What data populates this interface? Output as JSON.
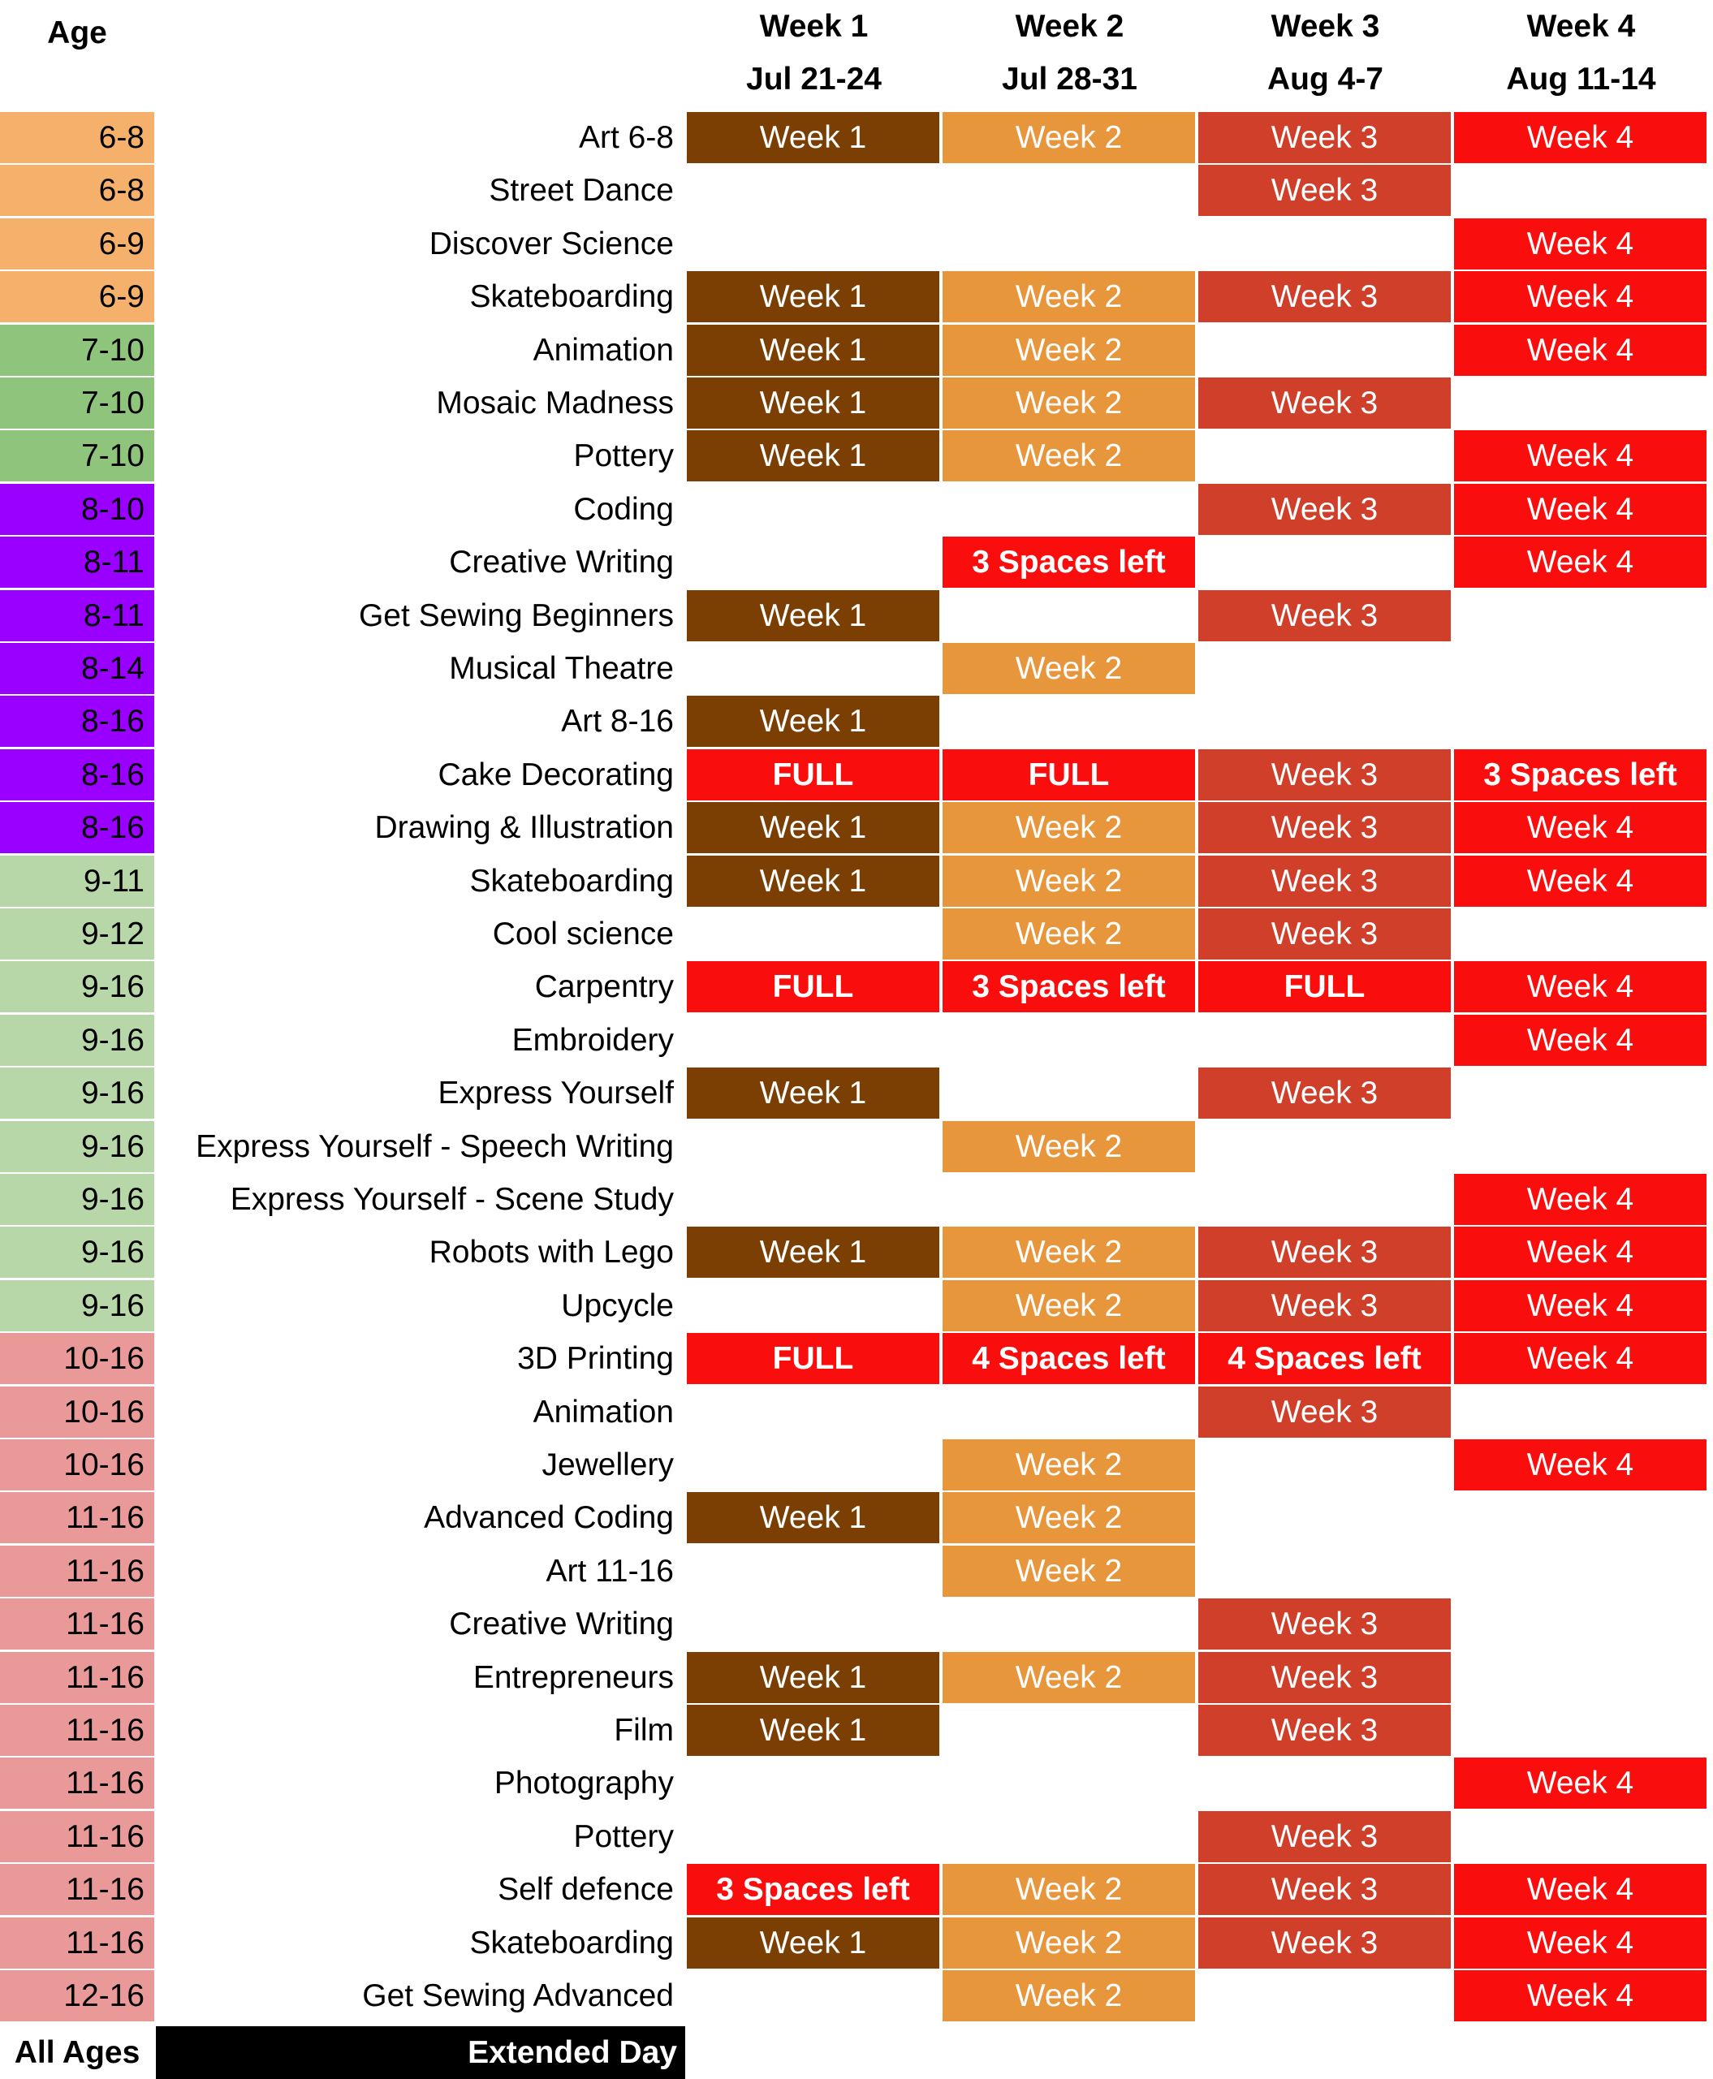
{
  "header": {
    "age_label": "Age",
    "weeks": [
      {
        "label": "Week 1",
        "dates": "Jul 21-24"
      },
      {
        "label": "Week 2",
        "dates": "Jul 28-31"
      },
      {
        "label": "Week 3",
        "dates": "Aug 4-7"
      },
      {
        "label": "Week 4",
        "dates": "Aug 11-14"
      }
    ]
  },
  "colors": {
    "age_groups": {
      "6-8": "#f5b06c",
      "6-9": "#f5b06c",
      "7-10": "#8fc47c",
      "8-10": "#9900ff",
      "8-11": "#9900ff",
      "8-14": "#9900ff",
      "8-16": "#9900ff",
      "9-11": "#b7d7a8",
      "9-12": "#b7d7a8",
      "9-16": "#b7d7a8",
      "10-16": "#ea9999",
      "11-16": "#ea9999",
      "12-16": "#ea9999"
    },
    "week_cells": [
      "#7b3f04",
      "#e8963c",
      "#cf3f2a",
      "#fa0d0d"
    ],
    "status_cell": "#fa0d0d"
  },
  "rows": [
    {
      "age": "6-8",
      "course": "Art 6-8",
      "weeks": [
        "Week 1",
        "Week 2",
        "Week 3",
        "Week 4"
      ]
    },
    {
      "age": "6-8",
      "course": "Street Dance",
      "weeks": [
        "",
        "",
        "Week 3",
        ""
      ]
    },
    {
      "age": "6-9",
      "course": "Discover Science",
      "weeks": [
        "",
        "",
        "",
        "Week 4"
      ]
    },
    {
      "age": "6-9",
      "course": "Skateboarding",
      "weeks": [
        "Week 1",
        "Week 2",
        "Week 3",
        "Week 4"
      ]
    },
    {
      "age": "7-10",
      "course": "Animation",
      "weeks": [
        "Week 1",
        "Week 2",
        "",
        "Week 4"
      ]
    },
    {
      "age": "7-10",
      "course": "Mosaic Madness",
      "weeks": [
        "Week 1",
        "Week 2",
        "Week 3",
        ""
      ]
    },
    {
      "age": "7-10",
      "course": "Pottery",
      "weeks": [
        "Week 1",
        "Week 2",
        "",
        "Week 4"
      ]
    },
    {
      "age": "8-10",
      "course": "Coding",
      "weeks": [
        "",
        "",
        "Week 3",
        "Week 4"
      ]
    },
    {
      "age": "8-11",
      "course": "Creative Writing",
      "weeks": [
        "",
        "3 Spaces left",
        "",
        "Week 4"
      ]
    },
    {
      "age": "8-11",
      "course": "Get Sewing Beginners",
      "weeks": [
        "Week 1",
        "",
        "Week 3",
        ""
      ]
    },
    {
      "age": "8-14",
      "course": "Musical Theatre",
      "weeks": [
        "",
        "Week 2",
        "",
        ""
      ]
    },
    {
      "age": "8-16",
      "course": "Art 8-16",
      "weeks": [
        "Week 1",
        "",
        "",
        ""
      ]
    },
    {
      "age": "8-16",
      "course": "Cake Decorating",
      "weeks": [
        "FULL",
        "FULL",
        "Week 3",
        "3 Spaces left"
      ]
    },
    {
      "age": "8-16",
      "course": "Drawing & Illustration",
      "weeks": [
        "Week 1",
        "Week 2",
        "Week 3",
        "Week 4"
      ]
    },
    {
      "age": "9-11",
      "course": "Skateboarding",
      "weeks": [
        "Week 1",
        "Week 2",
        "Week 3",
        "Week 4"
      ]
    },
    {
      "age": "9-12",
      "course": "Cool science",
      "weeks": [
        "",
        "Week 2",
        "Week 3",
        ""
      ]
    },
    {
      "age": "9-16",
      "course": "Carpentry",
      "weeks": [
        "FULL",
        "3 Spaces left",
        "FULL",
        "Week 4"
      ]
    },
    {
      "age": "9-16",
      "course": "Embroidery",
      "weeks": [
        "",
        "",
        "",
        "Week 4"
      ]
    },
    {
      "age": "9-16",
      "course": "Express Yourself",
      "weeks": [
        "Week 1",
        "",
        "Week 3",
        ""
      ]
    },
    {
      "age": "9-16",
      "course": "Express Yourself - Speech Writing",
      "weeks": [
        "",
        "Week 2",
        "",
        ""
      ]
    },
    {
      "age": "9-16",
      "course": "Express Yourself - Scene Study",
      "weeks": [
        "",
        "",
        "",
        "Week 4"
      ]
    },
    {
      "age": "9-16",
      "course": "Robots with Lego",
      "weeks": [
        "Week 1",
        "Week 2",
        "Week 3",
        "Week 4"
      ]
    },
    {
      "age": "9-16",
      "course": "Upcycle",
      "weeks": [
        "",
        "Week 2",
        "Week 3",
        "Week 4"
      ]
    },
    {
      "age": "10-16",
      "course": "3D Printing",
      "weeks": [
        "FULL",
        "4 Spaces left",
        "4 Spaces left",
        "Week 4"
      ]
    },
    {
      "age": "10-16",
      "course": "Animation",
      "weeks": [
        "",
        "",
        "Week 3",
        ""
      ]
    },
    {
      "age": "10-16",
      "course": "Jewellery",
      "weeks": [
        "",
        "Week 2",
        "",
        "Week 4"
      ]
    },
    {
      "age": "11-16",
      "course": "Advanced Coding",
      "weeks": [
        "Week 1",
        "Week 2",
        "",
        ""
      ]
    },
    {
      "age": "11-16",
      "course": "Art 11-16",
      "weeks": [
        "",
        "Week 2",
        "",
        ""
      ]
    },
    {
      "age": "11-16",
      "course": "Creative Writing",
      "weeks": [
        "",
        "",
        "Week 3",
        ""
      ]
    },
    {
      "age": "11-16",
      "course": "Entrepreneurs",
      "weeks": [
        "Week 1",
        "Week 2",
        "Week 3",
        ""
      ]
    },
    {
      "age": "11-16",
      "course": "Film",
      "weeks": [
        "Week 1",
        "",
        "Week 3",
        ""
      ]
    },
    {
      "age": "11-16",
      "course": "Photography",
      "weeks": [
        "",
        "",
        "",
        "Week 4"
      ]
    },
    {
      "age": "11-16",
      "course": "Pottery",
      "weeks": [
        "",
        "",
        "Week 3",
        ""
      ]
    },
    {
      "age": "11-16",
      "course": "Self defence",
      "weeks": [
        "3 Spaces left",
        "Week 2",
        "Week 3",
        "Week 4"
      ]
    },
    {
      "age": "11-16",
      "course": "Skateboarding",
      "weeks": [
        "Week 1",
        "Week 2",
        "Week 3",
        "Week 4"
      ]
    },
    {
      "age": "12-16",
      "course": "Get Sewing Advanced",
      "weeks": [
        "",
        "Week 2",
        "",
        "Week 4"
      ]
    }
  ],
  "footer": {
    "age": "All Ages",
    "label": "Extended Day"
  }
}
